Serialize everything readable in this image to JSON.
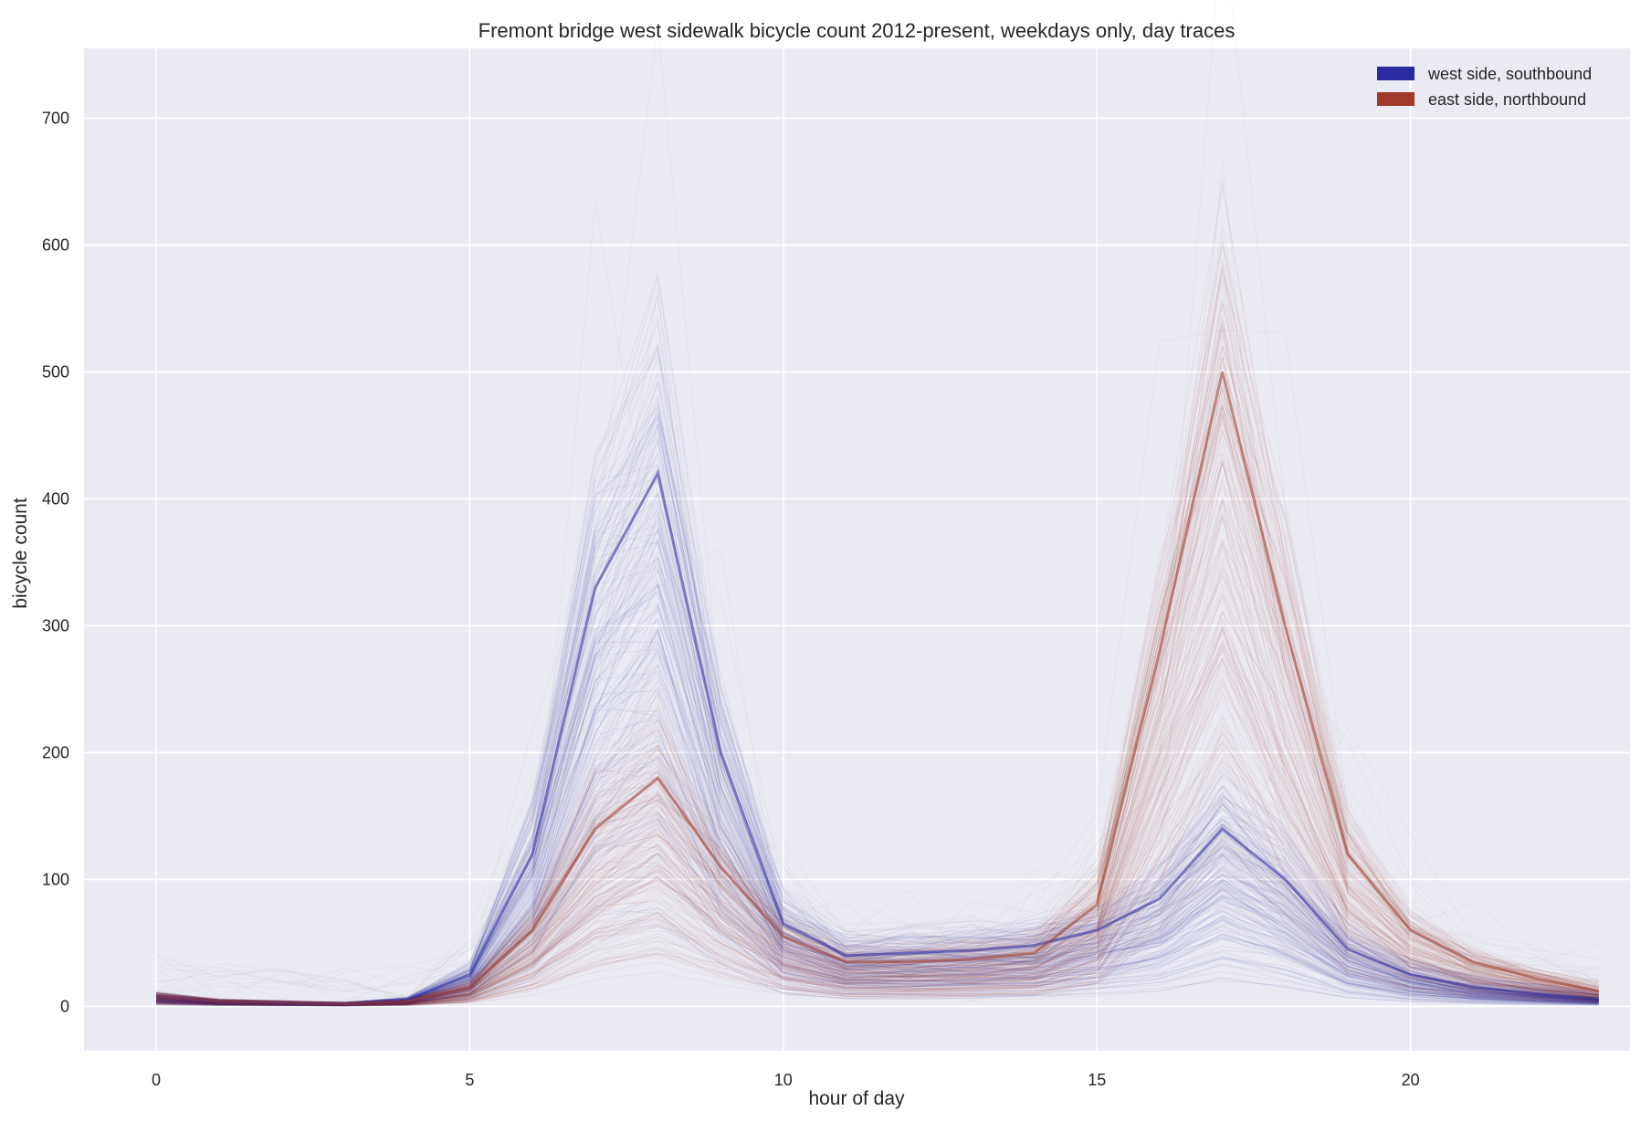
{
  "chart_data": {
    "type": "line",
    "title": "Fremont bridge west sidewalk bicycle count 2012-present, weekdays only, day traces",
    "xlabel": "hour of day",
    "ylabel": "bicycle count",
    "xlim": [
      -1.15,
      23.5
    ],
    "ylim": [
      -35,
      755
    ],
    "x_ticks": [
      0,
      5,
      10,
      15,
      20
    ],
    "y_ticks": [
      0,
      100,
      200,
      300,
      400,
      500,
      600,
      700
    ],
    "grid": true,
    "legend_position": "top-right",
    "hours": [
      0,
      1,
      2,
      3,
      4,
      5,
      6,
      7,
      8,
      9,
      10,
      11,
      12,
      13,
      14,
      15,
      16,
      17,
      18,
      19,
      20,
      21,
      22,
      23
    ],
    "series": [
      {
        "name": "west side, southbound",
        "color": "#2a2aa0",
        "typical_profile": [
          8,
          4,
          3,
          2,
          5,
          25,
          120,
          330,
          420,
          200,
          65,
          40,
          42,
          44,
          48,
          60,
          85,
          140,
          100,
          45,
          25,
          15,
          10,
          6
        ],
        "peak_profile": [
          15,
          8,
          6,
          5,
          10,
          45,
          220,
          560,
          700,
          300,
          120,
          80,
          85,
          90,
          95,
          110,
          150,
          250,
          180,
          90,
          60,
          40,
          30,
          20
        ]
      },
      {
        "name": "east side, northbound",
        "color": "#a03a2a",
        "typical_profile": [
          8,
          4,
          3,
          2,
          4,
          15,
          60,
          140,
          180,
          110,
          55,
          35,
          35,
          37,
          42,
          80,
          280,
          500,
          300,
          120,
          60,
          35,
          22,
          12
        ],
        "peak_profile": [
          18,
          9,
          7,
          6,
          9,
          30,
          110,
          250,
          300,
          180,
          100,
          70,
          75,
          80,
          90,
          160,
          420,
          720,
          450,
          180,
          100,
          60,
          40,
          30
        ]
      }
    ]
  }
}
